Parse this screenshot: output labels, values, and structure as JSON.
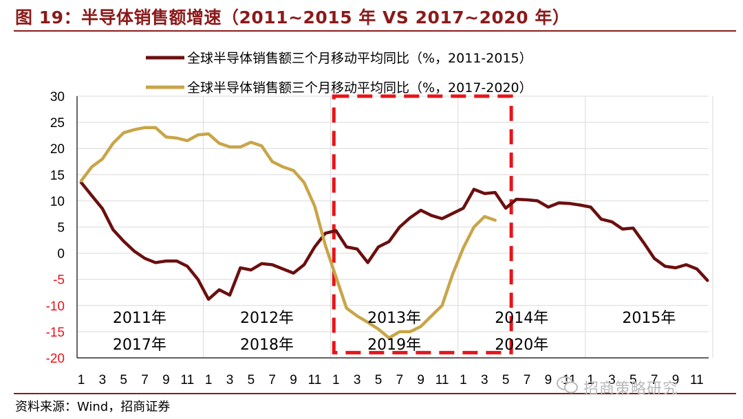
{
  "title": "图 19：半导体销售额增速（2011~2015 年 VS 2017~2020 年）",
  "source": "资料来源：Wind，招商证券",
  "watermark": "招商策略研究",
  "watermark_icon": "wechat-icon",
  "colors": {
    "title": "#8b1a1a",
    "series_2011_2015": "#6b0f0f",
    "series_2017_2020": "#c8a548",
    "highlight_box": "#e8141a",
    "negative_tick": "#e8141a",
    "grid": "#d9d9d9"
  },
  "chart_data": {
    "type": "line",
    "ylim": [
      -20,
      30
    ],
    "yticks": [
      30,
      25,
      20,
      15,
      10,
      5,
      0,
      -5,
      -10,
      -15,
      -20
    ],
    "grid": true,
    "legend_position": "top",
    "x_tick_labels": [
      "1",
      "3",
      "5",
      "7",
      "9",
      "11",
      "1",
      "3",
      "5",
      "7",
      "9",
      "11",
      "1",
      "3",
      "5",
      "7",
      "9",
      "11",
      "1",
      "3",
      "5",
      "7",
      "9",
      "11",
      "1",
      "3",
      "5",
      "7",
      "9",
      "11"
    ],
    "year_labels_upper": [
      "2011年",
      "2012年",
      "2013年",
      "2014年",
      "2015年"
    ],
    "year_labels_lower": [
      "2017年",
      "2018年",
      "2019年",
      "2020年"
    ],
    "highlight_box": {
      "from_month_index": 24,
      "to_month_index": 40,
      "y_range": [
        -19,
        30
      ]
    },
    "series": [
      {
        "name": "全球半导体销售额三个月移动平均同比（%，2011-2015）",
        "color": "#6b0f0f",
        "values": [
          13.5,
          11.0,
          8.5,
          4.5,
          2.3,
          0.4,
          -1.0,
          -1.8,
          -1.5,
          -1.5,
          -2.5,
          -5.0,
          -8.8,
          -7.0,
          -8.0,
          -2.8,
          -3.2,
          -2.0,
          -2.2,
          -3.0,
          -3.8,
          -2.2,
          1.2,
          3.8,
          4.3,
          1.2,
          0.8,
          -1.8,
          1.2,
          2.2,
          5.0,
          6.8,
          8.2,
          7.2,
          6.6,
          7.6,
          8.6,
          12.2,
          11.4,
          11.6,
          8.6,
          10.3,
          10.2,
          10.0,
          8.8,
          9.6,
          9.5,
          9.2,
          8.8,
          6.5,
          6.0,
          4.6,
          4.8,
          2.0,
          -1.0,
          -2.5,
          -2.8,
          -2.2,
          -3.0,
          -5.2
        ]
      },
      {
        "name": "全球半导体销售额三个月移动平均同比（%，2017-2020）",
        "color": "#c8a548",
        "values": [
          13.8,
          16.5,
          18.0,
          21.0,
          23.0,
          23.6,
          24.0,
          24.0,
          22.2,
          22.0,
          21.5,
          22.6,
          22.8,
          21.0,
          20.3,
          20.3,
          21.2,
          20.5,
          17.5,
          16.5,
          15.8,
          13.5,
          9.0,
          1.5,
          -4.5,
          -10.5,
          -12.0,
          -13.2,
          -14.5,
          -16.2,
          -15.0,
          -15.0,
          -14.0,
          -12.0,
          -10.0,
          -4.0,
          1.0,
          5.0,
          7.0,
          6.3
        ]
      }
    ]
  }
}
